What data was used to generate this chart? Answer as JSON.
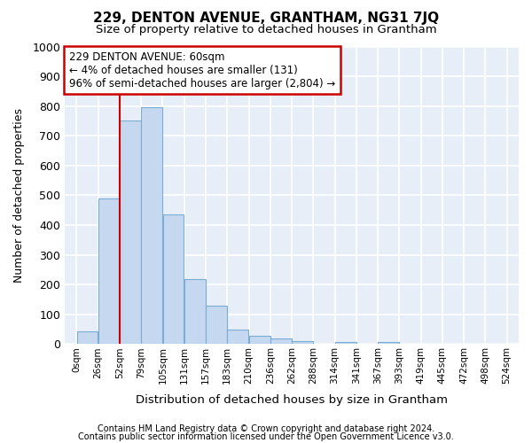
{
  "title": "229, DENTON AVENUE, GRANTHAM, NG31 7JQ",
  "subtitle": "Size of property relative to detached houses in Grantham",
  "xlabel": "Distribution of detached houses by size in Grantham",
  "ylabel": "Number of detached properties",
  "footer1": "Contains HM Land Registry data © Crown copyright and database right 2024.",
  "footer2": "Contains public sector information licensed under the Open Government Licence v3.0.",
  "annotation_line1": "229 DENTON AVENUE: 60sqm",
  "annotation_line2": "← 4% of detached houses are smaller (131)",
  "annotation_line3": "96% of semi-detached houses are larger (2,804) →",
  "bar_values": [
    42,
    490,
    750,
    795,
    435,
    220,
    128,
    50,
    28,
    18,
    10,
    0,
    8,
    0,
    8,
    0,
    0,
    0,
    0,
    0
  ],
  "bin_labels": [
    "0sqm",
    "26sqm",
    "52sqm",
    "79sqm",
    "105sqm",
    "131sqm",
    "157sqm",
    "183sqm",
    "210sqm",
    "236sqm",
    "262sqm",
    "288sqm",
    "314sqm",
    "341sqm",
    "367sqm",
    "393sqm",
    "419sqm",
    "445sqm",
    "472sqm",
    "498sqm",
    "524sqm"
  ],
  "bar_color": "#c5d8f0",
  "bar_edge_color": "#7badd4",
  "red_line_x": 52,
  "bin_width": 26,
  "ylim": [
    0,
    1000
  ],
  "yticks": [
    0,
    100,
    200,
    300,
    400,
    500,
    600,
    700,
    800,
    900,
    1000
  ],
  "bg_color": "#e8eef8",
  "grid_color": "#ffffff",
  "annotation_box_color": "#ffffff",
  "annotation_box_edge": "#cc0000",
  "red_line_color": "#cc0000",
  "fig_bg": "#ffffff"
}
